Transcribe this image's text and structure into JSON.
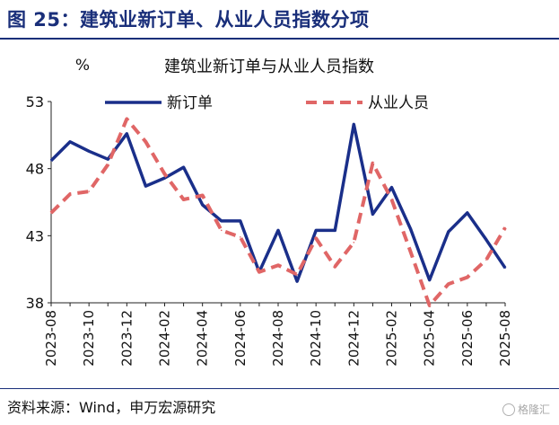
{
  "figure": {
    "title": "图 25：建筑业新订单、从业人员指数分项",
    "source": "资料来源：Wind，申万宏源研究",
    "watermark": "格隆汇"
  },
  "chart_data": {
    "type": "line",
    "title": "建筑业新订单与从业人员指数",
    "ylabel": "%",
    "ylim": [
      38,
      53
    ],
    "yticks": [
      38,
      43,
      48,
      53
    ],
    "x": [
      "2023-08",
      "2023-09",
      "2023-10",
      "2023-11",
      "2023-12",
      "2024-01",
      "2024-02",
      "2024-03",
      "2024-04",
      "2024-05",
      "2024-06",
      "2024-07",
      "2024-08",
      "2024-09",
      "2024-10",
      "2024-11",
      "2024-12",
      "2025-01",
      "2025-02",
      "2025-03",
      "2025-04",
      "2025-05",
      "2025-06",
      "2025-07",
      "2025-08"
    ],
    "xtick_labels": [
      "2023-08",
      "2023-10",
      "2023-12",
      "2024-02",
      "2024-04",
      "2024-06",
      "2024-08",
      "2024-10",
      "2024-12",
      "2025-02",
      "2025-04",
      "2025-06",
      "2025-08"
    ],
    "legend_position": "top",
    "series": [
      {
        "name": "新订单",
        "color": "#1a2f8a",
        "style": "solid",
        "values": [
          48.6,
          50.0,
          49.3,
          48.7,
          50.6,
          46.7,
          47.3,
          48.1,
          45.3,
          44.1,
          44.1,
          40.3,
          43.4,
          39.6,
          43.4,
          43.4,
          51.3,
          44.6,
          46.6,
          43.5,
          39.7,
          43.3,
          44.7,
          42.7,
          40.6
        ]
      },
      {
        "name": "从业人员",
        "color": "#e06666",
        "style": "dashed",
        "values": [
          44.7,
          46.1,
          46.3,
          48.3,
          51.7,
          50.0,
          47.6,
          45.7,
          46.0,
          43.4,
          42.9,
          40.3,
          40.8,
          40.1,
          42.8,
          40.7,
          42.5,
          48.4,
          45.7,
          41.8,
          37.8,
          39.4,
          39.9,
          41.2,
          43.6
        ]
      }
    ]
  }
}
